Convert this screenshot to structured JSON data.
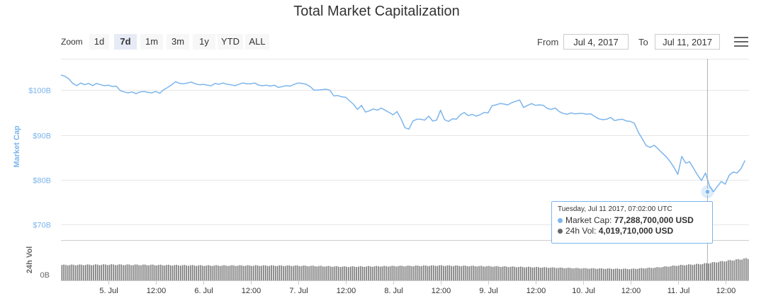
{
  "chart_data": {
    "type": "line",
    "title": "Total Market Capitalization",
    "ylabel": "Market Cap",
    "y2label": "24h Vol",
    "ylim": [
      67000000000,
      107000000000
    ],
    "yticks": [
      {
        "value": 100000000000,
        "label": "$100B"
      },
      {
        "value": 90000000000,
        "label": "$90B"
      },
      {
        "value": 80000000000,
        "label": "$80B"
      },
      {
        "value": 70000000000,
        "label": "$70B"
      }
    ],
    "vol_ticks": [
      {
        "value": 0,
        "label": "0B"
      }
    ],
    "x_ticks": [
      {
        "hours": 12,
        "label": "5. Jul"
      },
      {
        "hours": 24,
        "label": "12:00"
      },
      {
        "hours": 36,
        "label": "6. Jul"
      },
      {
        "hours": 48,
        "label": "12:00"
      },
      {
        "hours": 60,
        "label": "7. Jul"
      },
      {
        "hours": 72,
        "label": "12:00"
      },
      {
        "hours": 84,
        "label": "8. Jul"
      },
      {
        "hours": 96,
        "label": "12:00"
      },
      {
        "hours": 108,
        "label": "9. Jul"
      },
      {
        "hours": 120,
        "label": "12:00"
      },
      {
        "hours": 132,
        "label": "10. Jul"
      },
      {
        "hours": 144,
        "label": "12:00"
      },
      {
        "hours": 156,
        "label": "11. Jul"
      },
      {
        "hours": 168,
        "label": "12:00"
      }
    ],
    "series": [
      {
        "name": "Market Cap",
        "unit": "B USD",
        "color": "#7cb5ec",
        "points": [
          [
            0,
            103.4
          ],
          [
            1,
            103.1
          ],
          [
            2,
            102.5
          ],
          [
            3,
            101.5
          ],
          [
            4,
            101.0
          ],
          [
            5,
            101.6
          ],
          [
            6,
            101.2
          ],
          [
            7,
            101.5
          ],
          [
            8,
            101.0
          ],
          [
            9,
            101.5
          ],
          [
            10,
            101.2
          ],
          [
            11,
            101.0
          ],
          [
            12,
            101.1
          ],
          [
            13,
            100.8
          ],
          [
            14,
            100.9
          ],
          [
            15,
            99.9
          ],
          [
            16,
            99.6
          ],
          [
            17,
            99.4
          ],
          [
            18,
            99.6
          ],
          [
            19,
            99.2
          ],
          [
            20,
            99.6
          ],
          [
            21,
            99.7
          ],
          [
            22,
            99.5
          ],
          [
            23,
            99.4
          ],
          [
            24,
            99.7
          ],
          [
            25,
            99.3
          ],
          [
            26,
            100.1
          ],
          [
            27,
            100.6
          ],
          [
            28,
            101.2
          ],
          [
            29,
            101.9
          ],
          [
            30,
            101.5
          ],
          [
            31,
            101.4
          ],
          [
            32,
            101.6
          ],
          [
            33,
            101.8
          ],
          [
            34,
            101.4
          ],
          [
            35,
            101.2
          ],
          [
            36,
            101.3
          ],
          [
            37,
            101.1
          ],
          [
            38,
            101.0
          ],
          [
            39,
            101.5
          ],
          [
            40,
            101.3
          ],
          [
            41,
            101.6
          ],
          [
            42,
            101.3
          ],
          [
            43,
            101.2
          ],
          [
            44,
            101.0
          ],
          [
            45,
            101.3
          ],
          [
            46,
            101.6
          ],
          [
            47,
            101.4
          ],
          [
            48,
            101.4
          ],
          [
            49,
            101.6
          ],
          [
            50,
            101.1
          ],
          [
            51,
            101.0
          ],
          [
            52,
            101.1
          ],
          [
            53,
            100.9
          ],
          [
            54,
            101.1
          ],
          [
            55,
            100.6
          ],
          [
            56,
            100.8
          ],
          [
            57,
            101.0
          ],
          [
            58,
            100.9
          ],
          [
            59,
            101.3
          ],
          [
            60,
            101.6
          ],
          [
            61,
            101.5
          ],
          [
            62,
            101.3
          ],
          [
            63,
            100.8
          ],
          [
            64,
            100.0
          ],
          [
            65,
            100.0
          ],
          [
            66,
            100.1
          ],
          [
            67,
            100.2
          ],
          [
            68,
            100.0
          ],
          [
            69,
            98.7
          ],
          [
            70,
            98.8
          ],
          [
            71,
            98.5
          ],
          [
            72,
            98.4
          ],
          [
            73,
            97.6
          ],
          [
            74,
            96.8
          ],
          [
            75,
            95.7
          ],
          [
            76,
            96.6
          ],
          [
            77,
            95.1
          ],
          [
            78,
            95.4
          ],
          [
            79,
            95.8
          ],
          [
            80,
            95.5
          ],
          [
            81,
            96.0
          ],
          [
            82,
            95.5
          ],
          [
            83,
            95.0
          ],
          [
            84,
            94.5
          ],
          [
            85,
            95.2
          ],
          [
            86,
            93.6
          ],
          [
            87,
            91.6
          ],
          [
            88,
            91.3
          ],
          [
            89,
            93.1
          ],
          [
            90,
            93.5
          ],
          [
            91,
            93.5
          ],
          [
            92,
            93.3
          ],
          [
            93,
            94.2
          ],
          [
            94,
            93.1
          ],
          [
            95,
            93.3
          ],
          [
            96,
            95.5
          ],
          [
            97,
            93.4
          ],
          [
            98,
            93.0
          ],
          [
            99,
            93.6
          ],
          [
            100,
            93.5
          ],
          [
            101,
            94.5
          ],
          [
            102,
            95.0
          ],
          [
            103,
            94.3
          ],
          [
            104,
            94.6
          ],
          [
            105,
            94.2
          ],
          [
            106,
            94.5
          ],
          [
            107,
            95.0
          ],
          [
            108,
            94.9
          ],
          [
            109,
            96.5
          ],
          [
            110,
            96.7
          ],
          [
            111,
            97.0
          ],
          [
            112,
            96.9
          ],
          [
            113,
            96.7
          ],
          [
            114,
            97.2
          ],
          [
            115,
            97.5
          ],
          [
            116,
            97.8
          ],
          [
            117,
            96.1
          ],
          [
            118,
            96.6
          ],
          [
            119,
            97.0
          ],
          [
            120,
            96.6
          ],
          [
            121,
            96.7
          ],
          [
            122,
            96.6
          ],
          [
            123,
            95.9
          ],
          [
            124,
            95.7
          ],
          [
            125,
            96.0
          ],
          [
            126,
            95.2
          ],
          [
            127,
            94.8
          ],
          [
            128,
            94.6
          ],
          [
            129,
            94.9
          ],
          [
            130,
            94.7
          ],
          [
            131,
            94.8
          ],
          [
            132,
            94.8
          ],
          [
            133,
            94.6
          ],
          [
            134,
            94.7
          ],
          [
            135,
            94.1
          ],
          [
            136,
            93.6
          ],
          [
            137,
            93.4
          ],
          [
            138,
            93.5
          ],
          [
            139,
            93.9
          ],
          [
            140,
            93.2
          ],
          [
            141,
            93.4
          ],
          [
            142,
            93.5
          ],
          [
            143,
            93.1
          ],
          [
            144,
            93.0
          ],
          [
            145,
            92.6
          ],
          [
            146,
            90.6
          ],
          [
            147,
            89.2
          ],
          [
            148,
            87.6
          ],
          [
            149,
            87.2
          ],
          [
            150,
            87.7
          ],
          [
            151,
            86.9
          ],
          [
            152,
            86.0
          ],
          [
            153,
            85.2
          ],
          [
            154,
            84.1
          ],
          [
            155,
            82.8
          ],
          [
            156,
            81.2
          ],
          [
            157,
            85.2
          ],
          [
            158,
            83.7
          ],
          [
            159,
            84.0
          ],
          [
            160,
            82.5
          ],
          [
            161,
            81.0
          ],
          [
            162,
            79.8
          ],
          [
            163,
            81.5
          ],
          [
            164,
            78.6
          ],
          [
            165,
            77.3
          ],
          [
            166,
            78.5
          ],
          [
            167,
            79.6
          ],
          [
            168,
            79.0
          ],
          [
            169,
            81.0
          ],
          [
            170,
            81.7
          ],
          [
            171,
            81.5
          ],
          [
            172,
            82.5
          ],
          [
            173,
            84.3
          ]
        ]
      },
      {
        "name": "24h Vol",
        "unit": "B USD",
        "color": "#666666",
        "points": [
          [
            0,
            4.1
          ],
          [
            12,
            4.2
          ],
          [
            24,
            4.1
          ],
          [
            36,
            3.95
          ],
          [
            48,
            3.95
          ],
          [
            60,
            3.9
          ],
          [
            72,
            3.65
          ],
          [
            84,
            3.8
          ],
          [
            96,
            3.95
          ],
          [
            108,
            3.75
          ],
          [
            120,
            3.5
          ],
          [
            132,
            3.2
          ],
          [
            144,
            3.05
          ],
          [
            150,
            3.4
          ],
          [
            156,
            4.0
          ],
          [
            162,
            4.4
          ],
          [
            168,
            5.2
          ],
          [
            173,
            5.8
          ]
        ]
      }
    ],
    "tooltip": {
      "date": "Tuesday, Jul 11 2017, 07:02:00 UTC",
      "rows": [
        {
          "name": "Market Cap:",
          "value": "77,288,700,000 USD",
          "color": "#7cb5ec"
        },
        {
          "name": "24h Vol:",
          "value": "4,019,710,000 USD",
          "color": "#666666"
        }
      ],
      "hours": 163.5,
      "y_billions": 77.2887
    }
  },
  "zoom": {
    "label": "Zoom",
    "buttons": [
      "1d",
      "7d",
      "1m",
      "3m",
      "1y",
      "YTD",
      "ALL"
    ],
    "active": "7d"
  },
  "range": {
    "from_label": "From",
    "from_value": "Jul 4, 2017",
    "to_label": "To",
    "to_value": "Jul 11, 2017"
  },
  "menu_icon": "hamburger-menu-icon"
}
